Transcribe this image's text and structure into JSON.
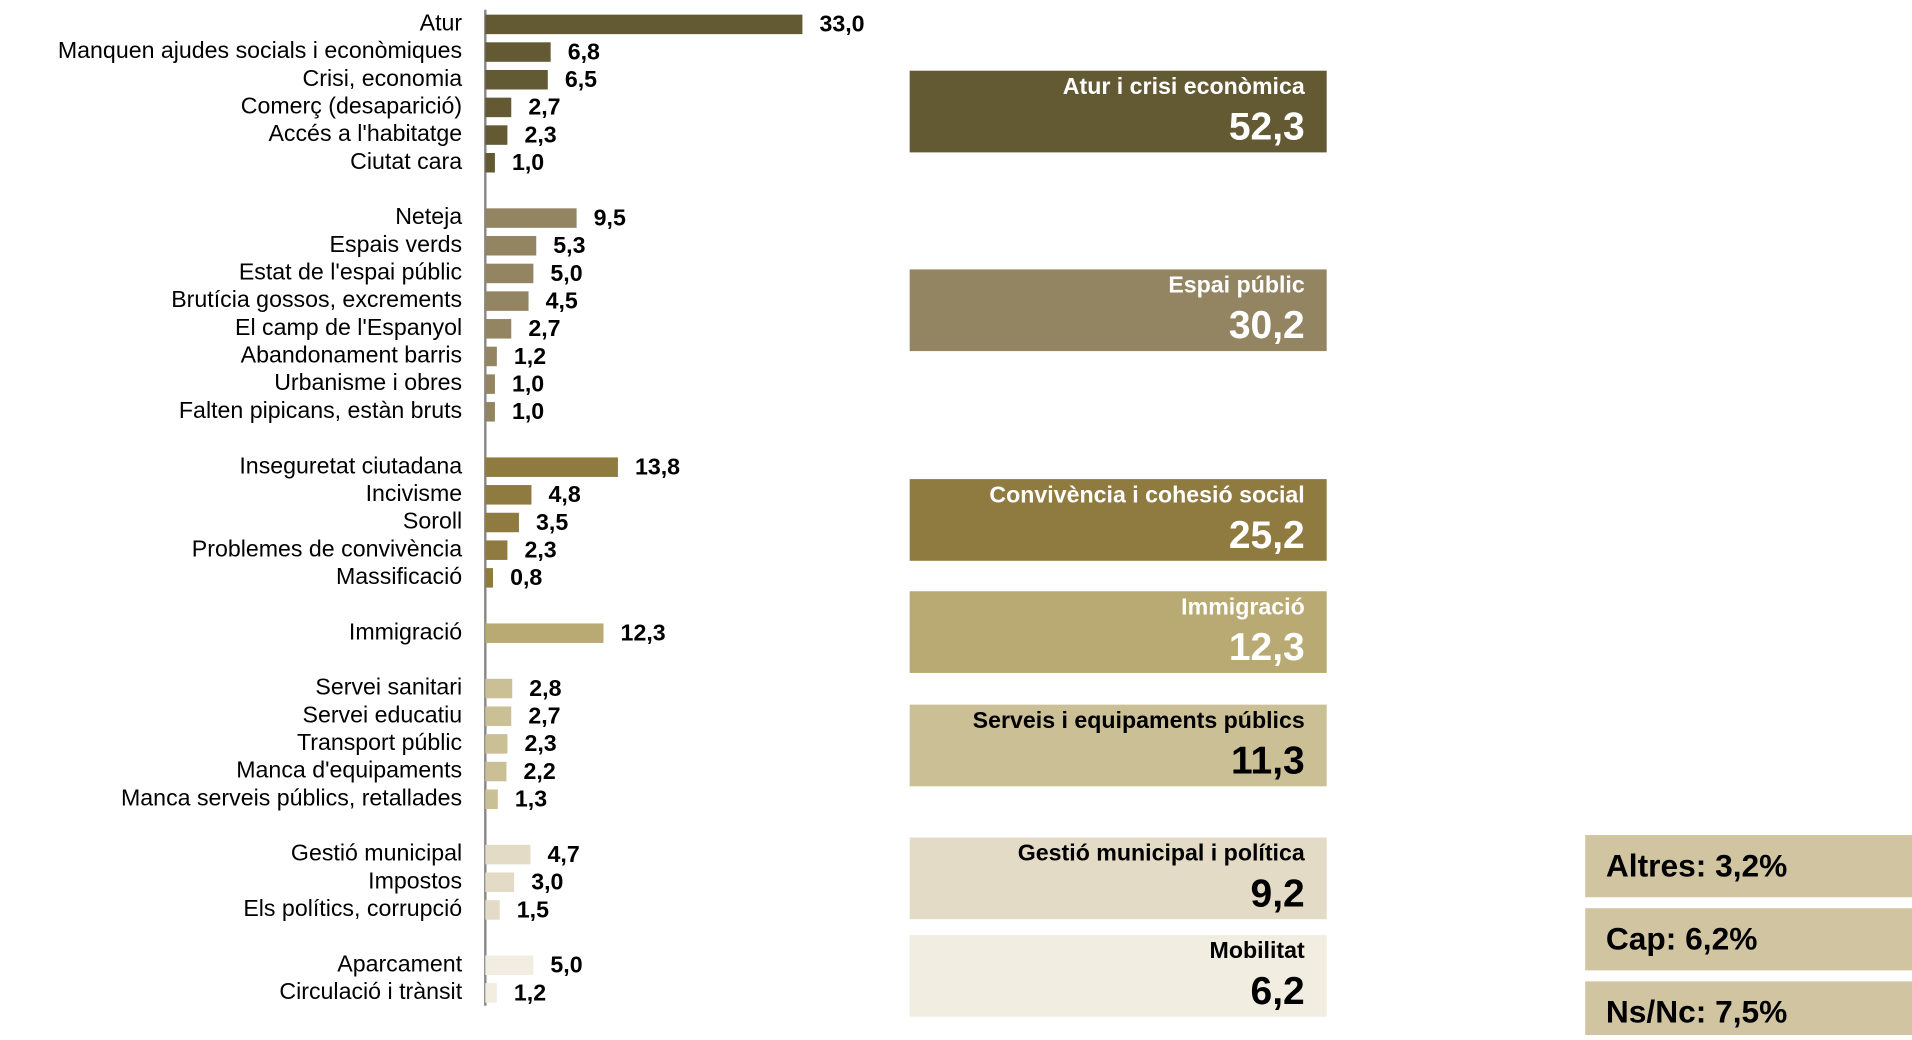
{
  "chart_data": {
    "type": "bar",
    "groups": [
      {
        "name": "Atur i crisi econòmica",
        "total": 52.3,
        "total_label": "52,3",
        "color": "#635a33",
        "label_color": "#ffffff",
        "categories": [
          "Atur",
          "Manquen ajudes socials i econòmiques",
          "Crisi, economia",
          "Comerç (desaparició)",
          "Accés a l'habitatge",
          "Ciutat cara"
        ],
        "values": [
          33.0,
          6.8,
          6.5,
          2.7,
          2.3,
          1.0
        ],
        "value_labels": [
          "33,0",
          "6,8",
          "6,5",
          "2,7",
          "2,3",
          "1,0"
        ]
      },
      {
        "name": "Espai públic",
        "total": 30.2,
        "total_label": "30,2",
        "color": "#938462",
        "label_color": "#ffffff",
        "categories": [
          "Neteja",
          "Espais verds",
          "Estat de l'espai públic",
          "Brutícia gossos, excrements",
          "El camp de l'Espanyol",
          "Abandonament barris",
          "Urbanisme i obres",
          "Falten pipicans, estàn bruts"
        ],
        "values": [
          9.5,
          5.3,
          5.0,
          4.5,
          2.7,
          1.2,
          1.0,
          1.0
        ],
        "value_labels": [
          "9,5",
          "5,3",
          "5,0",
          "4,5",
          "2,7",
          "1,2",
          "1,0",
          "1,0"
        ]
      },
      {
        "name": "Convivència i cohesió social",
        "total": 25.2,
        "total_label": "25,2",
        "color": "#8f7a3f",
        "label_color": "#ffffff",
        "categories": [
          "Inseguretat ciutadana",
          "Incivisme",
          "Soroll",
          "Problemes de convivència",
          "Massificació"
        ],
        "values": [
          13.8,
          4.8,
          3.5,
          2.3,
          0.8
        ],
        "value_labels": [
          "13,8",
          "4,8",
          "3,5",
          "2,3",
          "0,8"
        ]
      },
      {
        "name": "Immigració",
        "total": 12.3,
        "total_label": "12,3",
        "color": "#b8aa72",
        "label_color": "#ffffff",
        "categories": [
          "Immigració"
        ],
        "values": [
          12.3
        ],
        "value_labels": [
          "12,3"
        ]
      },
      {
        "name": "Serveis i equipaments públics",
        "total": 11.3,
        "total_label": "11,3",
        "color": "#cbbf96",
        "label_color": "#000000",
        "categories": [
          "Servei sanitari",
          "Servei educatiu",
          "Transport públic",
          "Manca d'equipaments",
          "Manca serveis públics, retallades"
        ],
        "values": [
          2.8,
          2.7,
          2.3,
          2.2,
          1.3
        ],
        "value_labels": [
          "2,8",
          "2,7",
          "2,3",
          "2,2",
          "1,3"
        ]
      },
      {
        "name": "Gestió municipal i política",
        "total": 9.2,
        "total_label": "9,2",
        "color": "#e3dbc6",
        "label_color": "#000000",
        "categories": [
          "Gestió municipal",
          "Impostos",
          "Els polítics, corrupció"
        ],
        "values": [
          4.7,
          3.0,
          1.5
        ],
        "value_labels": [
          "4,7",
          "3,0",
          "1,5"
        ]
      },
      {
        "name": "Mobilitat",
        "total": 6.2,
        "total_label": "6,2",
        "color": "#f1ede1",
        "label_color": "#000000",
        "categories": [
          "Aparcament",
          "Circulació i trànsit"
        ],
        "values": [
          5.0,
          1.2
        ],
        "value_labels": [
          "5,0",
          "1,2"
        ]
      }
    ],
    "notes": [
      "Altres: 3,2%",
      "Cap: 6,2%",
      "Ns/Nc: 7,5%"
    ],
    "notes_color": "#d1c4a0"
  }
}
